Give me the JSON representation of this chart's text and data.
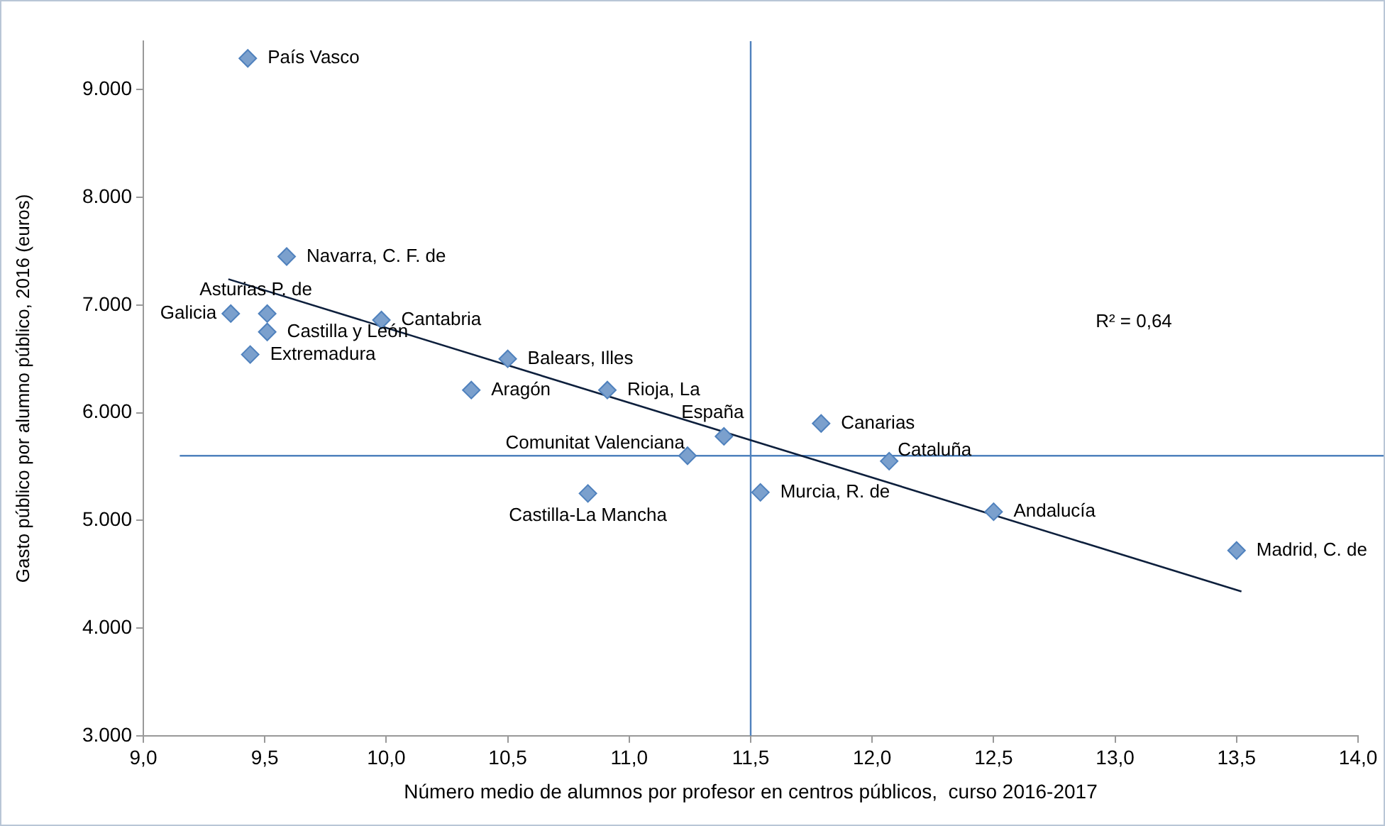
{
  "chart_data": {
    "type": "scatter",
    "xlabel": "Número medio de alumnos por profesor en centros públicos,  curso 2016-2017",
    "ylabel": "Gasto público por alumno público, 2016 (euros)",
    "xlim": [
      9,
      14
    ],
    "ylim": [
      3000,
      9450
    ],
    "xticks": [
      {
        "value": 9,
        "label": "9,0"
      },
      {
        "value": 9.5,
        "label": "9,5"
      },
      {
        "value": 10,
        "label": "10,0"
      },
      {
        "value": 10.5,
        "label": "10,5"
      },
      {
        "value": 11,
        "label": "11,0"
      },
      {
        "value": 11.5,
        "label": "11,5"
      },
      {
        "value": 12,
        "label": "12,0"
      },
      {
        "value": 12.5,
        "label": "12,5"
      },
      {
        "value": 13,
        "label": "13,0"
      },
      {
        "value": 13.5,
        "label": "13,5"
      },
      {
        "value": 14,
        "label": "14,0"
      }
    ],
    "yticks": [
      {
        "value": 3000,
        "label": "3.000"
      },
      {
        "value": 4000,
        "label": "4.000"
      },
      {
        "value": 5000,
        "label": "5.000"
      },
      {
        "value": 6000,
        "label": "6.000"
      },
      {
        "value": 7000,
        "label": "7.000"
      },
      {
        "value": 8000,
        "label": "8.000"
      },
      {
        "value": 9000,
        "label": "9.000"
      }
    ],
    "grid": false,
    "marker": "diamond",
    "series": [
      {
        "color": "#7ba0cd",
        "x": [
          9.43,
          9.59,
          9.36,
          9.51,
          9.51,
          9.44,
          9.98,
          10.5,
          10.35,
          10.91,
          11.39,
          11.24,
          10.83,
          11.54,
          11.79,
          12.07,
          12.5,
          13.5
        ],
        "values": [
          9290,
          7450,
          6920,
          6920,
          6750,
          6540,
          6860,
          6500,
          6210,
          6210,
          5780,
          5600,
          5250,
          5260,
          5900,
          5550,
          5080,
          4720
        ]
      },
      {
        "type": "line",
        "color": "#0d1f3c",
        "x": [
          9.35,
          13.52
        ],
        "values": [
          7240,
          4340
        ],
        "marker": "none"
      }
    ],
    "ref_lines": [
      {
        "axis": "x",
        "value": 11.5,
        "color": "#4f81bd"
      },
      {
        "axis": "y",
        "value": 5600,
        "color": "#4f81bd"
      }
    ],
    "annotations": [
      "R² = 0,64",
      {
        "text": "País Vasco",
        "x": 9.43,
        "y": 9290
      },
      {
        "text": "Navarra, C. F. de",
        "x": 9.59,
        "y": 7450
      },
      {
        "text": "Galicia",
        "x": 9.36,
        "y": 6920
      },
      {
        "text": "Asturias P. de",
        "x": 9.51,
        "y": 6920
      },
      {
        "text": "Castilla y León",
        "x": 9.51,
        "y": 6750
      },
      {
        "text": "Extremadura",
        "x": 9.44,
        "y": 6540
      },
      {
        "text": "Cantabria",
        "x": 9.98,
        "y": 6860
      },
      {
        "text": "Balears, Illes",
        "x": 10.5,
        "y": 6500
      },
      {
        "text": "Aragón",
        "x": 10.35,
        "y": 6210
      },
      {
        "text": "Rioja, La",
        "x": 10.91,
        "y": 6210
      },
      {
        "text": "España",
        "x": 11.39,
        "y": 5780
      },
      {
        "text": "Comunitat Valenciana",
        "x": 11.24,
        "y": 5600
      },
      {
        "text": "Castilla-La Mancha",
        "x": 10.83,
        "y": 5250
      },
      {
        "text": "Murcia, R. de",
        "x": 11.54,
        "y": 5260
      },
      {
        "text": "Canarias",
        "x": 11.79,
        "y": 5900
      },
      {
        "text": "Cataluña",
        "x": 12.07,
        "y": 5550
      },
      {
        "text": "Andalucía",
        "x": 12.5,
        "y": 5080
      },
      {
        "text": "Madrid, C. de",
        "x": 13.5,
        "y": 4720
      }
    ]
  }
}
